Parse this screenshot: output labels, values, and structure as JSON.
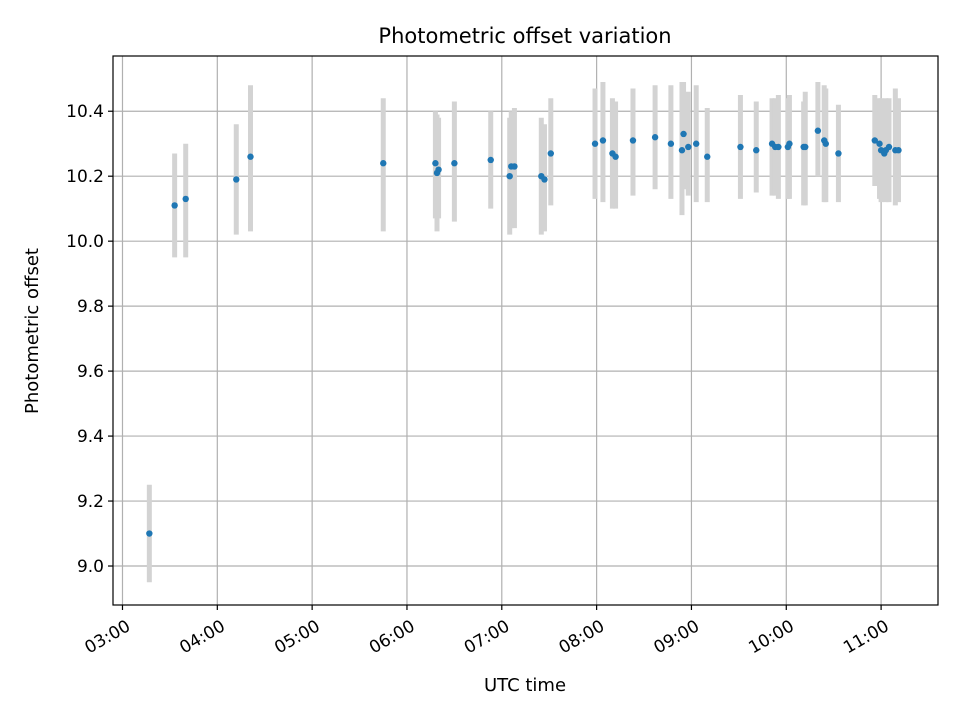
{
  "chart_data": {
    "type": "scatter",
    "title": "Photometric offset variation",
    "xlabel": "UTC time",
    "ylabel": "Photometric offset",
    "x_axis": {
      "kind": "time-of-day",
      "unit": "hours UTC",
      "range": [
        2.9,
        11.6
      ],
      "ticks": [
        3,
        4,
        5,
        6,
        7,
        8,
        9,
        10,
        11
      ],
      "tick_labels": [
        "03:00",
        "04:00",
        "05:00",
        "06:00",
        "07:00",
        "08:00",
        "09:00",
        "10:00",
        "11:00"
      ]
    },
    "y_axis": {
      "range": [
        8.88,
        10.57
      ],
      "ticks": [
        9.0,
        9.2,
        9.4,
        9.6,
        9.8,
        10.0,
        10.2,
        10.4
      ],
      "tick_labels": [
        "9.0",
        "9.2",
        "9.4",
        "9.6",
        "9.8",
        "10.0",
        "10.2",
        "10.4"
      ]
    },
    "grid": true,
    "colors": {
      "point": "#1f77b4",
      "errorbar": "#d3d3d3",
      "grid": "#b0b0b0"
    },
    "series": [
      {
        "x": [
          "03:17",
          "03:33",
          "03:40",
          "04:12",
          "04:21",
          "05:45",
          "06:18",
          "06:19",
          "06:20",
          "06:30",
          "06:53",
          "07:05",
          "07:06",
          "07:08",
          "07:25",
          "07:27",
          "07:31",
          "07:59",
          "08:04",
          "08:10",
          "08:12",
          "08:23",
          "08:37",
          "08:47",
          "08:54",
          "08:55",
          "08:58",
          "09:03",
          "09:10",
          "09:31",
          "09:41",
          "09:51",
          "09:53",
          "09:55",
          "10:01",
          "10:02",
          "10:11",
          "10:12",
          "10:20",
          "10:24",
          "10:25",
          "10:33",
          "10:56",
          "10:59",
          "11:00",
          "11:02",
          "11:03",
          "11:05",
          "11:09",
          "11:11"
        ],
        "y": [
          9.1,
          10.11,
          10.13,
          10.19,
          10.26,
          10.24,
          10.24,
          10.21,
          10.22,
          10.24,
          10.25,
          10.2,
          10.23,
          10.23,
          10.2,
          10.19,
          10.27,
          10.3,
          10.31,
          10.27,
          10.26,
          10.31,
          10.32,
          10.3,
          10.28,
          10.33,
          10.29,
          10.3,
          10.26,
          10.29,
          10.28,
          10.3,
          10.29,
          10.29,
          10.29,
          10.3,
          10.29,
          10.29,
          10.34,
          10.31,
          10.3,
          10.27,
          10.31,
          10.3,
          10.28,
          10.27,
          10.28,
          10.29,
          10.28,
          10.28
        ],
        "yerr_low": [
          8.95,
          9.95,
          9.95,
          10.02,
          10.03,
          10.03,
          10.07,
          10.03,
          10.07,
          10.06,
          10.1,
          10.02,
          10.04,
          10.04,
          10.02,
          10.03,
          10.11,
          10.13,
          10.12,
          10.1,
          10.1,
          10.14,
          10.16,
          10.13,
          10.08,
          10.16,
          10.14,
          10.12,
          10.12,
          10.13,
          10.15,
          10.14,
          10.14,
          10.13,
          10.13,
          10.13,
          10.11,
          10.11,
          10.2,
          10.12,
          10.12,
          10.12,
          10.17,
          10.13,
          10.12,
          10.13,
          10.12,
          10.12,
          10.11,
          10.12
        ],
        "yerr_high": [
          9.25,
          10.27,
          10.3,
          10.36,
          10.48,
          10.44,
          10.4,
          10.39,
          10.38,
          10.43,
          10.4,
          10.38,
          10.4,
          10.41,
          10.38,
          10.36,
          10.44,
          10.47,
          10.49,
          10.44,
          10.43,
          10.47,
          10.48,
          10.48,
          10.49,
          10.49,
          10.46,
          10.48,
          10.41,
          10.45,
          10.43,
          10.44,
          10.44,
          10.45,
          10.44,
          10.45,
          10.43,
          10.46,
          10.49,
          10.48,
          10.47,
          10.42,
          10.45,
          10.44,
          10.44,
          10.42,
          10.44,
          10.44,
          10.47,
          10.44
        ]
      }
    ]
  }
}
